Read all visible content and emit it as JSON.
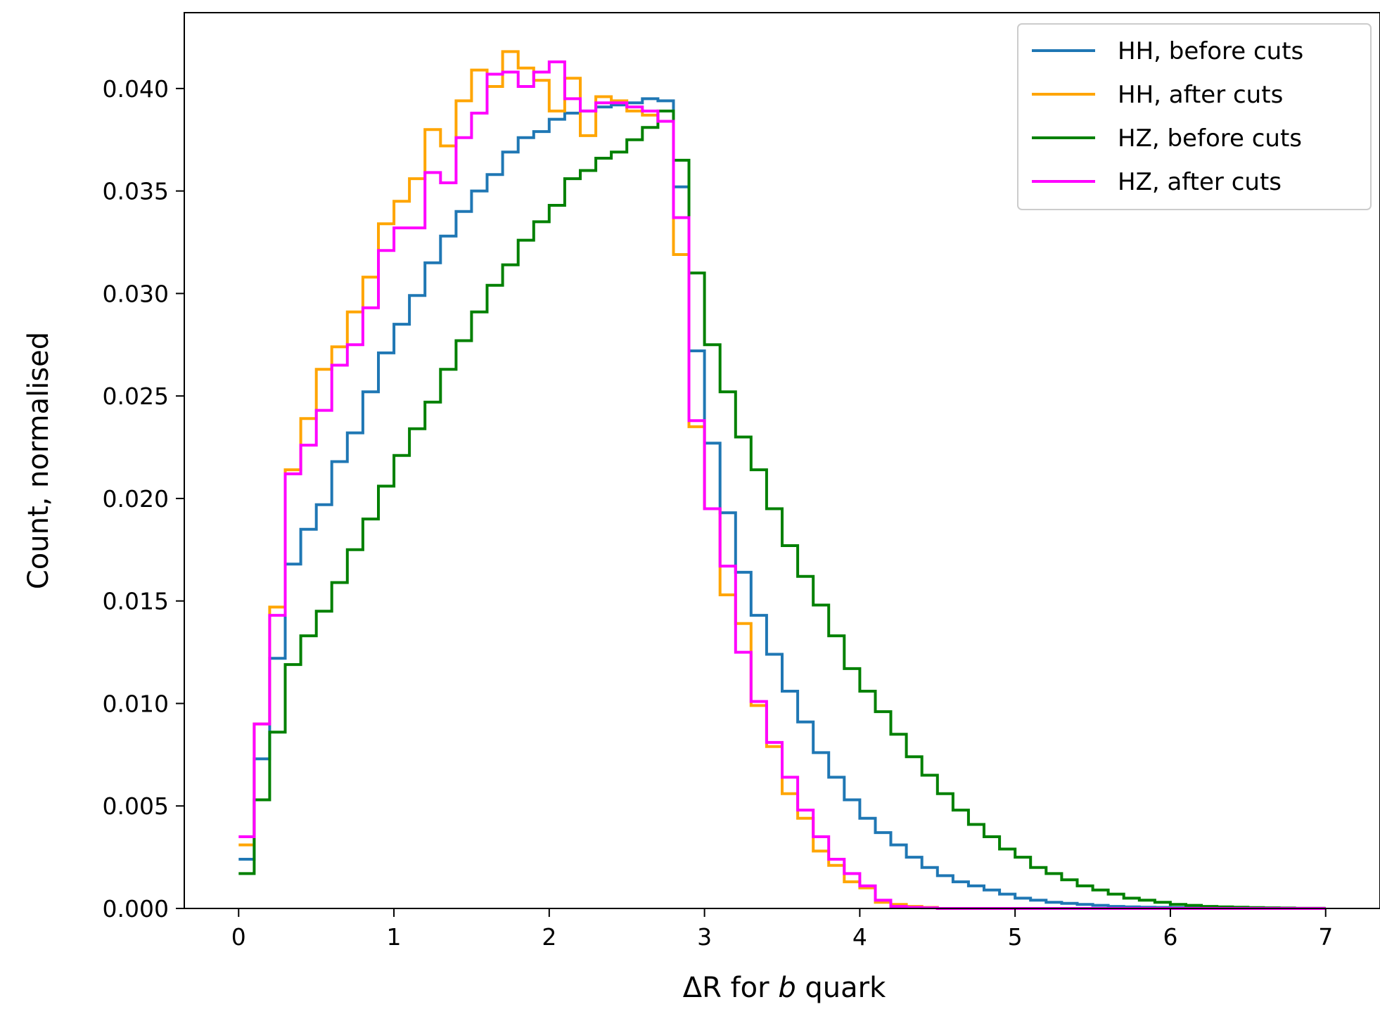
{
  "chart_data": {
    "type": "step-histogram",
    "title": "",
    "xlabel": {
      "prefix": "ΔR",
      "mid": " for ",
      "b": "b",
      "suffix": " quark"
    },
    "ylabel": "Count, normalised",
    "xlim": [
      -0.35,
      7.35
    ],
    "ylim": [
      0,
      0.0437
    ],
    "grid": false,
    "legend_position": "top-right",
    "x_ticks": [
      0,
      1,
      2,
      3,
      4,
      5,
      6,
      7
    ],
    "x_tick_labels": [
      "0",
      "1",
      "2",
      "3",
      "4",
      "5",
      "6",
      "7"
    ],
    "y_ticks": [
      0.0,
      0.005,
      0.01,
      0.015,
      0.02,
      0.025,
      0.03,
      0.035,
      0.04
    ],
    "y_tick_labels": [
      "0.000",
      "0.005",
      "0.010",
      "0.015",
      "0.020",
      "0.025",
      "0.030",
      "0.035",
      "0.040"
    ],
    "bin_width": 0.1,
    "bin_start": 0.0,
    "series": [
      {
        "name": "HH, before cuts",
        "color": "#1f77b4",
        "values": [
          0.0024,
          0.0073,
          0.0122,
          0.0168,
          0.0185,
          0.0197,
          0.0218,
          0.0232,
          0.0252,
          0.0271,
          0.0285,
          0.0299,
          0.0315,
          0.0328,
          0.034,
          0.035,
          0.0358,
          0.0369,
          0.0376,
          0.0379,
          0.0385,
          0.0388,
          0.0389,
          0.0391,
          0.0392,
          0.0393,
          0.0395,
          0.0394,
          0.0352,
          0.0272,
          0.0227,
          0.0193,
          0.0164,
          0.0143,
          0.0124,
          0.0106,
          0.0091,
          0.0076,
          0.0064,
          0.0053,
          0.0044,
          0.0037,
          0.0031,
          0.0025,
          0.002,
          0.0016,
          0.0013,
          0.0011,
          0.0009,
          0.0007,
          0.0005,
          0.0004,
          0.0003,
          0.00025,
          0.0002,
          0.00015,
          0.0001,
          8e-05,
          6e-05,
          5e-05,
          4e-05,
          3e-05,
          2e-05,
          2e-05,
          1e-05,
          1e-05,
          1e-05,
          0,
          0,
          0
        ]
      },
      {
        "name": "HH, after cuts",
        "color": "#ffa500",
        "values": [
          0.0031,
          0.009,
          0.0147,
          0.0214,
          0.0239,
          0.0263,
          0.0274,
          0.0291,
          0.0308,
          0.0334,
          0.0345,
          0.0356,
          0.038,
          0.0372,
          0.0394,
          0.0409,
          0.0401,
          0.0418,
          0.041,
          0.0404,
          0.0389,
          0.0405,
          0.0377,
          0.0396,
          0.0394,
          0.0389,
          0.0387,
          0.0384,
          0.0319,
          0.0235,
          0.0195,
          0.0153,
          0.0139,
          0.0099,
          0.0079,
          0.0056,
          0.0044,
          0.0028,
          0.0021,
          0.0013,
          0.001,
          0.0003,
          0.0002,
          0.0001,
          5e-05,
          0,
          0,
          0,
          0,
          0,
          0,
          0,
          0,
          0,
          0,
          0,
          0,
          0,
          0,
          0,
          0,
          0,
          0,
          0,
          0,
          0,
          0,
          0,
          0,
          0
        ]
      },
      {
        "name": "HZ, before cuts",
        "color": "#008000",
        "values": [
          0.0017,
          0.0053,
          0.0086,
          0.0119,
          0.0133,
          0.0145,
          0.0159,
          0.0175,
          0.019,
          0.0206,
          0.0221,
          0.0234,
          0.0247,
          0.0263,
          0.0277,
          0.0291,
          0.0304,
          0.0314,
          0.0326,
          0.0335,
          0.0343,
          0.0356,
          0.036,
          0.0366,
          0.0369,
          0.0375,
          0.0381,
          0.0389,
          0.0365,
          0.031,
          0.0275,
          0.0252,
          0.023,
          0.0214,
          0.0195,
          0.0177,
          0.0162,
          0.0148,
          0.0133,
          0.0117,
          0.0106,
          0.0096,
          0.0085,
          0.0074,
          0.0065,
          0.0056,
          0.0048,
          0.0041,
          0.0035,
          0.0029,
          0.0025,
          0.002,
          0.0017,
          0.0014,
          0.0011,
          0.0009,
          0.0007,
          0.0005,
          0.0004,
          0.0003,
          0.0002,
          0.00015,
          0.0001,
          8e-05,
          6e-05,
          4e-05,
          3e-05,
          2e-05,
          1e-05,
          1e-05
        ]
      },
      {
        "name": "HZ, after cuts",
        "color": "#ff00ff",
        "values": [
          0.0035,
          0.009,
          0.0143,
          0.0212,
          0.0226,
          0.0243,
          0.0265,
          0.0275,
          0.0293,
          0.0321,
          0.0332,
          0.0332,
          0.0359,
          0.0354,
          0.0376,
          0.0388,
          0.0407,
          0.0408,
          0.0401,
          0.0408,
          0.0413,
          0.0395,
          0.0389,
          0.0393,
          0.0393,
          0.0391,
          0.0389,
          0.0384,
          0.0337,
          0.0238,
          0.0195,
          0.0167,
          0.0125,
          0.0101,
          0.0081,
          0.0064,
          0.0048,
          0.0035,
          0.0024,
          0.0017,
          0.0011,
          0.0004,
          0.0001,
          5e-05,
          3e-05,
          0,
          0,
          0,
          0,
          0,
          0,
          0,
          0,
          0,
          0,
          0,
          0,
          0,
          0,
          0,
          0,
          0,
          0,
          0,
          0,
          0,
          0,
          0,
          0,
          0
        ]
      }
    ]
  }
}
